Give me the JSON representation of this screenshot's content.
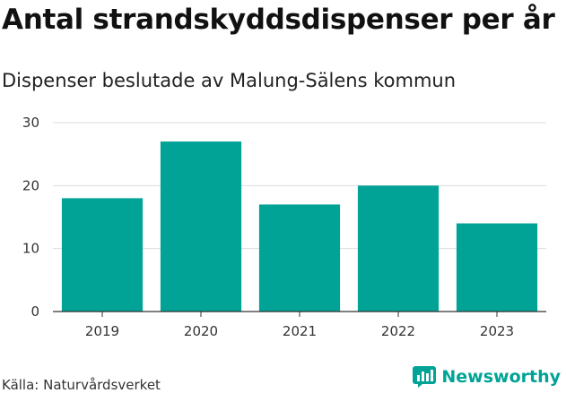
{
  "title": "Antal strandskyddsdispenser per år",
  "subtitle": "Dispenser beslutade av Malung-Sälens kommun",
  "source": "Källa: Naturvårdsverket",
  "brand": {
    "name": "Newsworthy",
    "icon": "newsworthy-logo-icon",
    "color": "#00a396"
  },
  "colors": {
    "bar": "#00a396",
    "grid": "#dddddd",
    "axis": "#333333"
  },
  "chart_data": {
    "type": "bar",
    "categories": [
      "2019",
      "2020",
      "2021",
      "2022",
      "2023"
    ],
    "values": [
      18,
      27,
      17,
      20,
      14
    ],
    "title": "Antal strandskyddsdispenser per år",
    "subtitle": "Dispenser beslutade av Malung-Sälens kommun",
    "xlabel": "",
    "ylabel": "",
    "ylim": [
      0,
      30
    ],
    "yticks": [
      0,
      10,
      20,
      30
    ],
    "grid": true,
    "legend": "none"
  }
}
